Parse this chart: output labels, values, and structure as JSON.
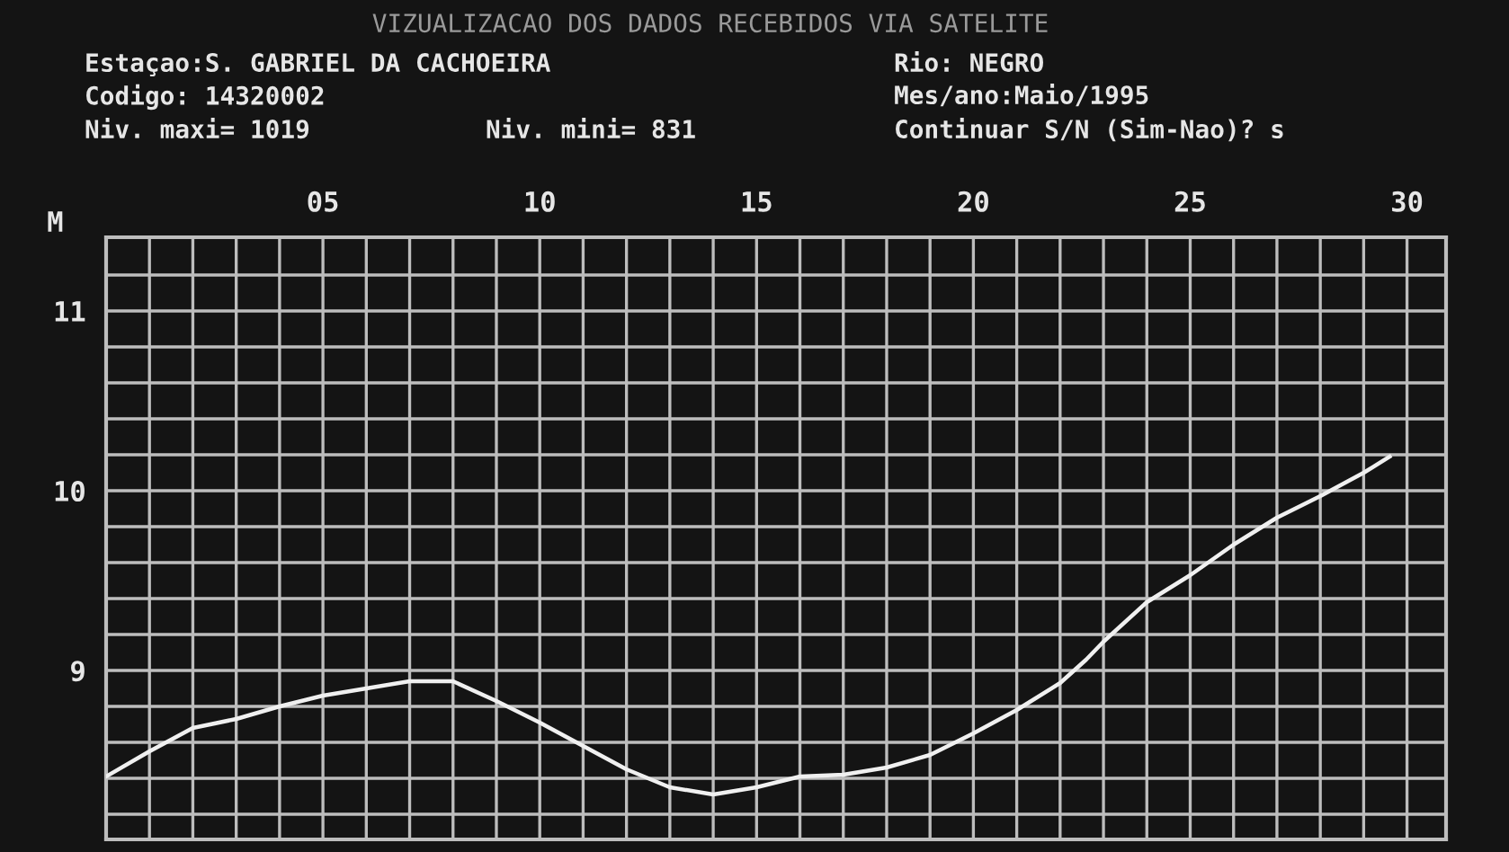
{
  "chart_data": {
    "type": "line",
    "title": "VIZUALIZACAO DOS DADOS RECEBIDOS VIA SATELITE",
    "ylabel": "M",
    "annotations": [
      "Estaçao:S. GABRIEL DA CACHOEIRA",
      "Codigo: 14320002",
      "Niv. maxi= 1019",
      "Niv. mini= 831",
      "Rio: NEGRO",
      "Mes/ano:Maio/1995",
      "Continuar S/N (Sim-Nao)? s"
    ],
    "x": [
      0,
      1,
      2,
      3,
      4,
      5,
      6,
      7,
      8,
      9,
      10,
      11,
      12,
      13,
      14,
      15,
      16,
      17,
      18,
      19,
      20,
      21,
      22,
      22.6,
      23,
      24,
      25,
      26,
      27,
      28,
      29,
      29.6
    ],
    "series": [
      {
        "color": "#f0f0f0",
        "values": [
          8.41,
          8.55,
          8.68,
          8.73,
          8.8,
          8.86,
          8.9,
          8.94,
          8.94,
          8.83,
          8.71,
          8.58,
          8.45,
          8.35,
          8.31,
          8.35,
          8.41,
          8.42,
          8.46,
          8.53,
          8.65,
          8.78,
          8.93,
          9.06,
          9.16,
          9.38,
          9.53,
          9.7,
          9.85,
          9.97,
          10.1,
          10.19
        ]
      }
    ],
    "xlim": [
      0,
      30.9
    ],
    "ylim": [
      8.06,
      11.41
    ],
    "xticks": [
      {
        "value": 1,
        "label": null
      },
      {
        "value": 2,
        "label": null
      },
      {
        "value": 3,
        "label": null
      },
      {
        "value": 4,
        "label": null
      },
      {
        "value": 5,
        "label": "05"
      },
      {
        "value": 6,
        "label": null
      },
      {
        "value": 7,
        "label": null
      },
      {
        "value": 8,
        "label": null
      },
      {
        "value": 9,
        "label": null
      },
      10,
      {
        "value": 11,
        "label": null
      },
      {
        "value": 12,
        "label": null
      },
      {
        "value": 13,
        "label": null
      },
      {
        "value": 14,
        "label": null
      },
      15,
      {
        "value": 16,
        "label": null
      },
      {
        "value": 17,
        "label": null
      },
      {
        "value": 18,
        "label": null
      },
      {
        "value": 19,
        "label": null
      },
      20,
      {
        "value": 21,
        "label": null
      },
      {
        "value": 22,
        "label": null
      },
      {
        "value": 23,
        "label": null
      },
      {
        "value": 24,
        "label": null
      },
      25,
      {
        "value": 26,
        "label": null
      },
      {
        "value": 27,
        "label": null
      },
      {
        "value": 28,
        "label": null
      },
      {
        "value": 29,
        "label": null
      },
      30
    ],
    "yticks": [
      {
        "value": 8.2,
        "label": null
      },
      {
        "value": 8.4,
        "label": null
      },
      {
        "value": 8.6,
        "label": null
      },
      {
        "value": 8.8,
        "label": null
      },
      9,
      {
        "value": 9.2,
        "label": null
      },
      {
        "value": 9.4,
        "label": null
      },
      {
        "value": 9.6,
        "label": null
      },
      {
        "value": 9.8,
        "label": null
      },
      10,
      {
        "value": 10.2,
        "label": null
      },
      {
        "value": 10.4,
        "label": null
      },
      {
        "value": 10.6,
        "label": null
      },
      {
        "value": 10.8,
        "label": null
      },
      11,
      {
        "value": 11.2,
        "label": null
      }
    ],
    "grid": true,
    "marker": "none",
    "line_style": "solid"
  }
}
